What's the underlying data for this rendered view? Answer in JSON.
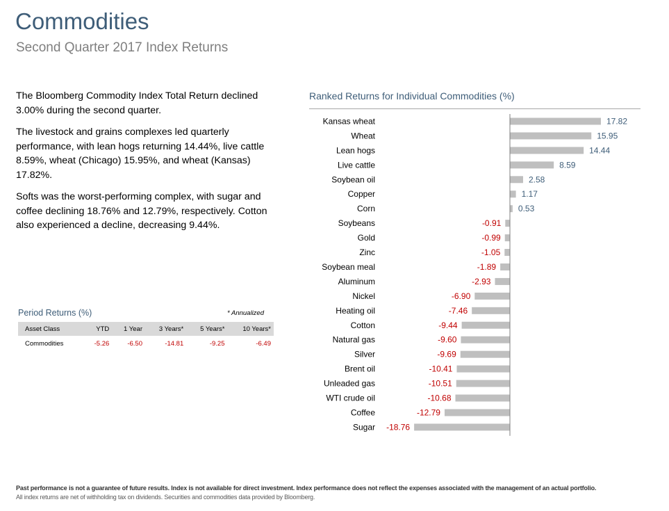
{
  "header": {
    "title": "Commodities",
    "subtitle": "Second Quarter 2017 Index Returns"
  },
  "summary": {
    "p1": "The Bloomberg Commodity Index Total Return declined 3.00% during the second quarter.",
    "p2": "The livestock and grains complexes led quarterly performance, with lean hogs returning 14.44%, live cattle 8.59%, wheat (Chicago) 15.95%, and wheat (Kansas) 17.82%.",
    "p3": "Softs was the worst-performing complex, with sugar and coffee declining 18.76% and 12.79%, respectively. Cotton also experienced a decline, decreasing 9.44%."
  },
  "period_returns": {
    "title": "Period Returns (%)",
    "note": "* Annualized",
    "headers": [
      "Asset Class",
      "YTD",
      "1 Year",
      "3 Years*",
      "5 Years*",
      "10 Years*"
    ],
    "row": [
      "Commodities",
      "-5.26",
      "-6.50",
      "-14.81",
      "-9.25",
      "-6.49"
    ]
  },
  "chart_data": {
    "type": "bar",
    "orientation": "horizontal",
    "title": "Ranked Returns for Individual Commodities (%)",
    "categories": [
      "Kansas wheat",
      "Wheat",
      "Lean hogs",
      "Live cattle",
      "Soybean oil",
      "Copper",
      "Corn",
      "Soybeans",
      "Gold",
      "Zinc",
      "Soybean meal",
      "Aluminum",
      "Nickel",
      "Heating oil",
      "Cotton",
      "Natural gas",
      "Silver",
      "Brent oil",
      "Unleaded gas",
      "WTI crude oil",
      "Coffee",
      "Sugar"
    ],
    "values": [
      17.82,
      15.95,
      14.44,
      8.59,
      2.58,
      1.17,
      0.53,
      -0.91,
      -0.99,
      -1.05,
      -1.89,
      -2.93,
      -6.9,
      -7.46,
      -9.44,
      -9.6,
      -9.69,
      -10.41,
      -10.51,
      -10.68,
      -12.79,
      -18.76
    ],
    "value_labels": [
      "17.82",
      "15.95",
      "14.44",
      "8.59",
      "2.58",
      "1.17",
      "0.53",
      "-0.91",
      "-0.99",
      "-1.05",
      "-1.89",
      "-2.93",
      "-6.90",
      "-7.46",
      "-9.44",
      "-9.60",
      "-9.69",
      "-10.41",
      "-10.51",
      "-10.68",
      "-12.79",
      "-18.76"
    ],
    "bar_color": "#bfbfbf",
    "positive_label_color": "#3e5d78",
    "negative_label_color": "#c00000",
    "grid": false
  },
  "footer": {
    "line1": "Past performance is not a guarantee of future results. Index is not available for direct investment. Index performance does not reflect the expenses associated with the management of an actual portfolio.",
    "line2": "All index returns are net of withholding tax on dividends. Securities and commodities data provided by Bloomberg."
  }
}
